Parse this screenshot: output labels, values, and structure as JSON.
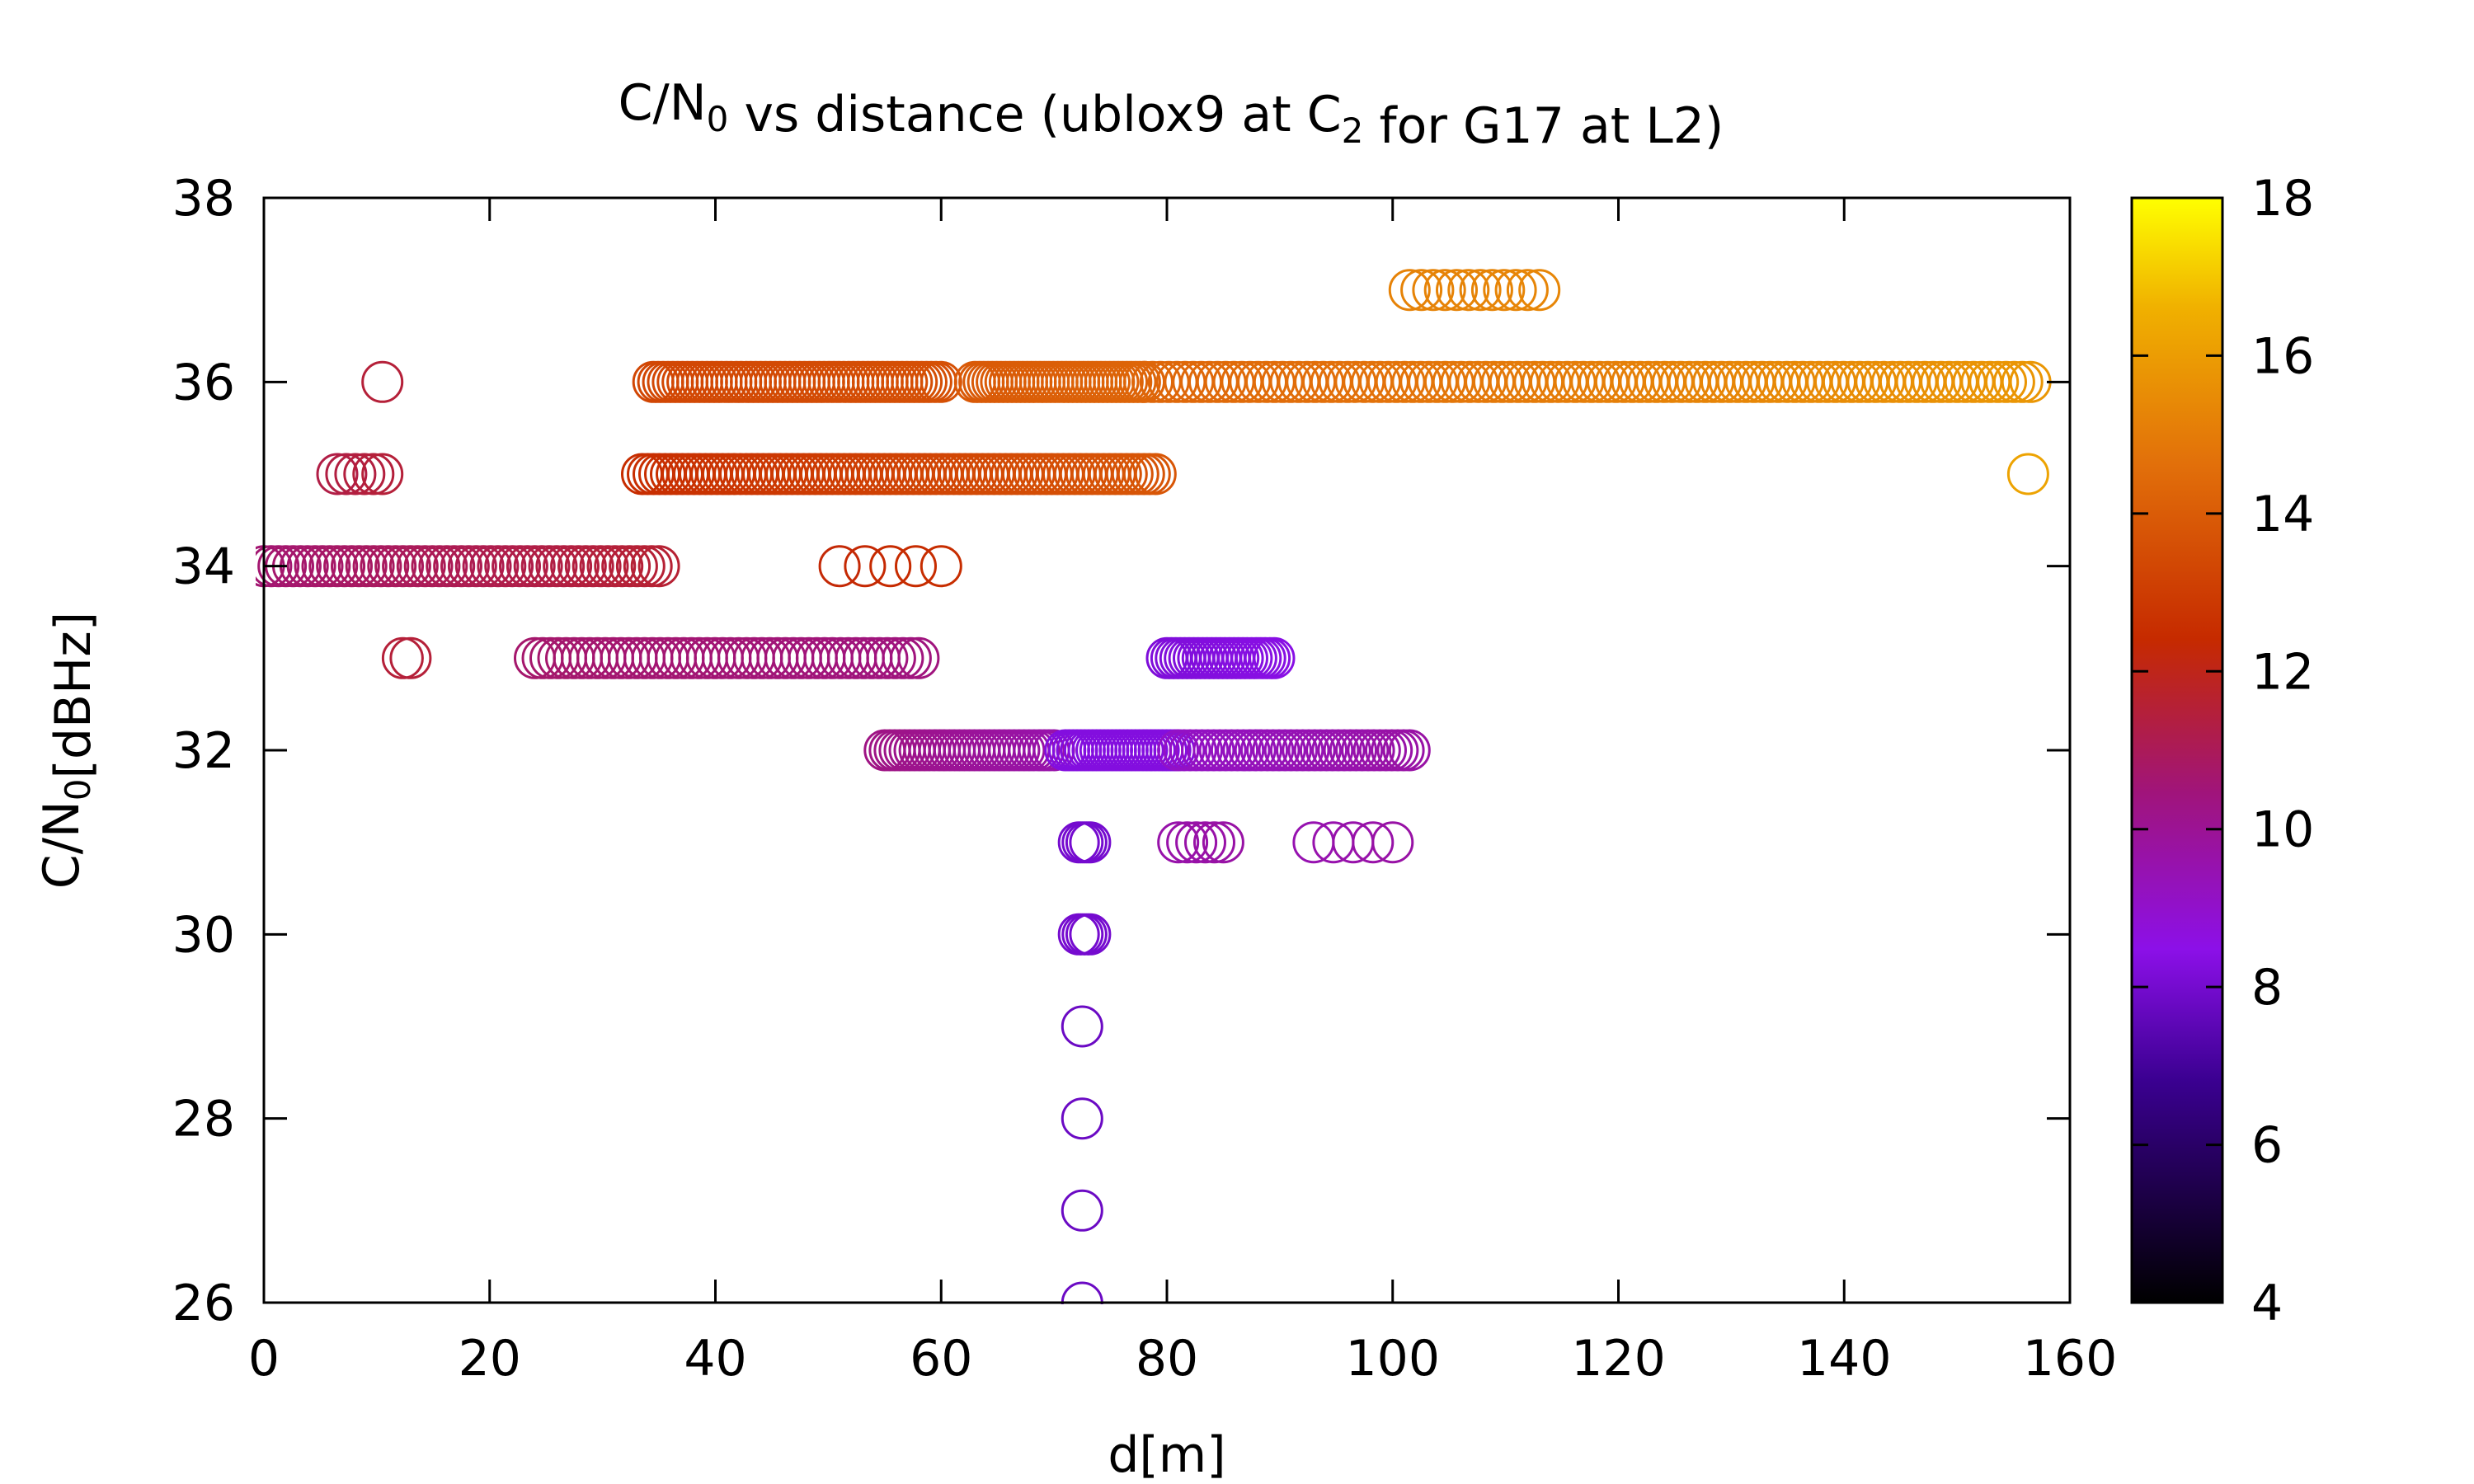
{
  "chart_data": {
    "type": "scatter",
    "title": {
      "parts": [
        {
          "text": "C/N"
        },
        {
          "text": "0",
          "sub": true
        },
        {
          "text": " vs distance (ublox9 at C"
        },
        {
          "text": "2",
          "sub": true
        },
        {
          "text": " for G17 at L2)"
        }
      ]
    },
    "xlabel": "d[m]",
    "ylabel": {
      "parts": [
        {
          "text": "C/N"
        },
        {
          "text": "0",
          "sub": true
        },
        {
          "text": "[dBHz]"
        }
      ]
    },
    "xlim": [
      0,
      160
    ],
    "ylim": [
      26,
      38
    ],
    "xticks": [
      0,
      20,
      40,
      60,
      80,
      100,
      120,
      140,
      160
    ],
    "yticks": [
      26,
      28,
      30,
      32,
      34,
      36,
      38
    ],
    "colorbar": {
      "range": [
        4,
        18
      ],
      "ticks": [
        4,
        6,
        8,
        10,
        12,
        14,
        16,
        18
      ],
      "palette": "black-blue-purple-red-orange-yellow"
    },
    "grid": false,
    "marker": "open-circle",
    "segments": [
      {
        "y": 34,
        "x0": 0,
        "x1": 35,
        "c0": 10.6,
        "c1": 11.6,
        "n": 55
      },
      {
        "y": 35,
        "x0": 6.5,
        "x1": 10.5,
        "c0": 11.3,
        "c1": 11.5,
        "n": 6
      },
      {
        "y": 36,
        "x0": 10.5,
        "x1": 10.5,
        "c0": 11.5,
        "c1": 11.5,
        "n": 1
      },
      {
        "y": 33,
        "x0": 12.3,
        "x1": 13,
        "c0": 11.5,
        "c1": 11.5,
        "n": 2
      },
      {
        "y": 33,
        "x0": 24,
        "x1": 58,
        "c0": 10.7,
        "c1": 10.4,
        "n": 50
      },
      {
        "y": 36,
        "x0": 34.5,
        "x1": 60,
        "c0": 13.3,
        "c1": 13.6,
        "n": 60
      },
      {
        "y": 36,
        "x0": 63,
        "x1": 78,
        "c0": 13.9,
        "c1": 14.3,
        "n": 40
      },
      {
        "y": 36,
        "x0": 78,
        "x1": 156.5,
        "c0": 14.3,
        "c1": 15.8,
        "n": 110
      },
      {
        "y": 35,
        "x0": 33.5,
        "x1": 79,
        "c0": 12.5,
        "c1": 13.8,
        "n": 90
      },
      {
        "y": 34,
        "x0": 51,
        "x1": 60,
        "c0": 12.3,
        "c1": 12.5,
        "n": 5
      },
      {
        "y": 32,
        "x0": 55,
        "x1": 70,
        "c0": 10.3,
        "c1": 9.6,
        "n": 35
      },
      {
        "y": 32,
        "x0": 71,
        "x1": 81,
        "c0": 8.3,
        "c1": 8.3,
        "n": 30
      },
      {
        "y": 32,
        "x0": 81,
        "x1": 101.5,
        "c0": 9.1,
        "c1": 9.7,
        "n": 40
      },
      {
        "y": 33,
        "x0": 80,
        "x1": 89.5,
        "c0": 8.2,
        "c1": 8.4,
        "n": 25
      },
      {
        "y": 31,
        "x0": 81,
        "x1": 85,
        "c0": 9.6,
        "c1": 9.7,
        "n": 6
      },
      {
        "y": 31,
        "x0": 93,
        "x1": 100,
        "c0": 9.5,
        "c1": 9.7,
        "n": 5
      },
      {
        "y": 31,
        "x0": 72.2,
        "x1": 73.2,
        "c0": 8.0,
        "c1": 8.0,
        "n": 4
      },
      {
        "y": 30,
        "x0": 72.2,
        "x1": 73.2,
        "c0": 8.0,
        "c1": 8.0,
        "n": 4
      },
      {
        "y": 37,
        "x0": 101.5,
        "x1": 113,
        "c0": 15.2,
        "c1": 15.3,
        "n": 12
      },
      {
        "y": 35,
        "x0": 156.3,
        "x1": 156.3,
        "c0": 16.2,
        "c1": 16.2,
        "n": 1
      }
    ],
    "points": [
      {
        "x": 72.5,
        "y": 29,
        "c": 7.8
      },
      {
        "x": 72.5,
        "y": 28,
        "c": 7.8
      },
      {
        "x": 72.5,
        "y": 27,
        "c": 7.8
      },
      {
        "x": 72.5,
        "y": 26,
        "c": 7.8
      }
    ]
  }
}
